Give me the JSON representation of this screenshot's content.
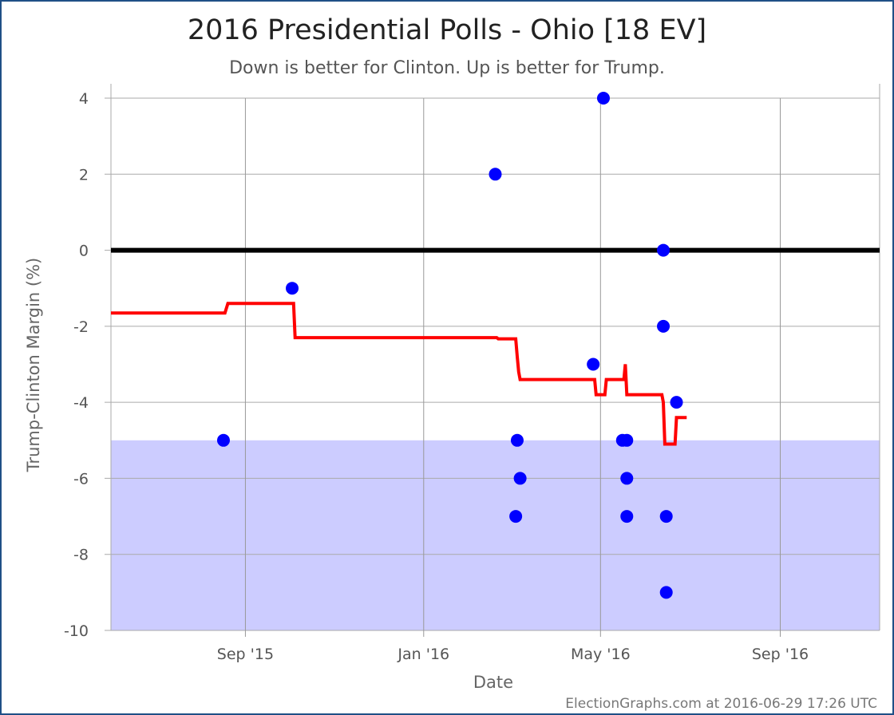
{
  "chart_data": {
    "type": "scatter",
    "title": "2016 Presidential Polls - Ohio [18 EV]",
    "subtitle": "Down is better for Clinton. Up is better for Trump.",
    "xlabel": "Date",
    "ylabel": "Trump-Clinton Margin (%)",
    "ylim": [
      -10,
      4
    ],
    "xlim": [
      "2015-06-01",
      "2016-11-08"
    ],
    "x_ticks": [
      {
        "date": "2015-09-01",
        "label": "Sep '15"
      },
      {
        "date": "2016-01-01",
        "label": "Jan '16"
      },
      {
        "date": "2016-05-01",
        "label": "May '16"
      },
      {
        "date": "2016-09-01",
        "label": "Sep '16"
      }
    ],
    "y_ticks": [
      -10,
      -8,
      -6,
      -4,
      -2,
      0,
      2,
      4
    ],
    "grid": true,
    "zero_line": 0,
    "shaded_band": {
      "from": -10,
      "to": -5,
      "color": "#ccccff"
    },
    "series": [
      {
        "type": "scatter",
        "color": "#0000ff",
        "points": [
          {
            "x": "2015-08-17",
            "y": -5
          },
          {
            "x": "2015-10-03",
            "y": -1
          },
          {
            "x": "2016-02-19",
            "y": 2
          },
          {
            "x": "2016-03-05",
            "y": -5
          },
          {
            "x": "2016-03-04",
            "y": -7
          },
          {
            "x": "2016-03-07",
            "y": -6
          },
          {
            "x": "2016-04-26",
            "y": -3
          },
          {
            "x": "2016-05-03",
            "y": 4
          },
          {
            "x": "2016-05-16",
            "y": -5
          },
          {
            "x": "2016-05-19",
            "y": -5
          },
          {
            "x": "2016-05-19",
            "y": -6
          },
          {
            "x": "2016-05-19",
            "y": -7
          },
          {
            "x": "2016-06-13",
            "y": 0
          },
          {
            "x": "2016-06-13",
            "y": -2
          },
          {
            "x": "2016-06-15",
            "y": -7
          },
          {
            "x": "2016-06-15",
            "y": -9
          },
          {
            "x": "2016-06-22",
            "y": -4
          }
        ]
      },
      {
        "type": "step-line",
        "color": "#ff0000",
        "points": [
          {
            "x": "2015-06-01",
            "y": -1.65
          },
          {
            "x": "2015-08-18",
            "y": -1.65
          },
          {
            "x": "2015-08-20",
            "y": -1.4
          },
          {
            "x": "2015-10-04",
            "y": -1.4
          },
          {
            "x": "2015-10-05",
            "y": -2.3
          },
          {
            "x": "2016-02-20",
            "y": -2.3
          },
          {
            "x": "2016-02-21",
            "y": -2.33
          },
          {
            "x": "2016-03-04",
            "y": -2.33
          },
          {
            "x": "2016-03-05",
            "y": -2.8
          },
          {
            "x": "2016-03-06",
            "y": -3.2
          },
          {
            "x": "2016-03-07",
            "y": -3.4
          },
          {
            "x": "2016-04-27",
            "y": -3.4
          },
          {
            "x": "2016-04-28",
            "y": -3.8
          },
          {
            "x": "2016-05-04",
            "y": -3.8
          },
          {
            "x": "2016-05-05",
            "y": -3.4
          },
          {
            "x": "2016-05-17",
            "y": -3.4
          },
          {
            "x": "2016-05-18",
            "y": -3.0
          },
          {
            "x": "2016-05-19",
            "y": -3.8
          },
          {
            "x": "2016-06-12",
            "y": -3.8
          },
          {
            "x": "2016-06-13",
            "y": -4.0
          },
          {
            "x": "2016-06-14",
            "y": -5.1
          },
          {
            "x": "2016-06-21",
            "y": -5.1
          },
          {
            "x": "2016-06-22",
            "y": -4.4
          },
          {
            "x": "2016-06-29",
            "y": -4.4
          }
        ]
      }
    ]
  },
  "footer": {
    "credit": "ElectionGraphs.com at 2016-06-29 17:26 UTC"
  }
}
